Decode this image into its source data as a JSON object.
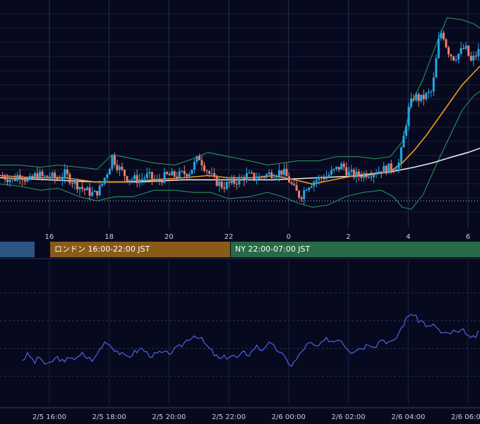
{
  "colors": {
    "background": "#070a1e",
    "grid": "#1a1f3a",
    "candle_up": "#22a6e8",
    "candle_down": "#e8806e",
    "bollinger": "#2e9b63",
    "ma_short": "#f39a1f",
    "ma_long": "#e8e8e8",
    "oscillator": "#4f62e6",
    "session_tokyo": "#2b5582",
    "session_london": "#8a5a18",
    "session_ny": "#276a45"
  },
  "sessions": [
    {
      "id": "tokyo",
      "label": ""
    },
    {
      "id": "london",
      "label": "ロンドン 16:00-22:00 JST"
    },
    {
      "id": "ny",
      "label": "NY 22:00-07:00 JST"
    }
  ],
  "chart_data": [
    {
      "type": "candlestick",
      "title": "",
      "xlabel": "",
      "ylabel": "",
      "x_tick_labels": [
        "16",
        "18",
        "20",
        "22",
        "0",
        "2",
        "4",
        "6"
      ],
      "x_tick_hours": [
        16,
        18,
        20,
        22,
        24,
        26,
        28,
        30
      ],
      "x_range_hours": [
        14.35,
        30.4
      ],
      "y_range": [
        0,
        100
      ],
      "grid": true,
      "price_path": [
        [
          14.35,
          24
        ],
        [
          14.8,
          22
        ],
        [
          15.0,
          25
        ],
        [
          15.3,
          21
        ],
        [
          15.6,
          25
        ],
        [
          15.8,
          23
        ],
        [
          16.0,
          24
        ],
        [
          16.3,
          22
        ],
        [
          16.5,
          25
        ],
        [
          16.8,
          21
        ],
        [
          17.2,
          17
        ],
        [
          17.5,
          15
        ],
        [
          17.7,
          18
        ],
        [
          18.0,
          28
        ],
        [
          18.1,
          33
        ],
        [
          18.3,
          28
        ],
        [
          18.6,
          23
        ],
        [
          19.0,
          22
        ],
        [
          19.3,
          24
        ],
        [
          19.6,
          21
        ],
        [
          19.9,
          24
        ],
        [
          20.3,
          24
        ],
        [
          20.7,
          26
        ],
        [
          21.0,
          33
        ],
        [
          21.2,
          28
        ],
        [
          21.5,
          22
        ],
        [
          21.8,
          19
        ],
        [
          22.2,
          21
        ],
        [
          22.6,
          24
        ],
        [
          23.0,
          23
        ],
        [
          23.4,
          25
        ],
        [
          23.8,
          26
        ],
        [
          24.0,
          22
        ],
        [
          24.2,
          17
        ],
        [
          24.4,
          14
        ],
        [
          24.6,
          19
        ],
        [
          24.9,
          22
        ],
        [
          25.3,
          24
        ],
        [
          25.6,
          27
        ],
        [
          25.8,
          29
        ],
        [
          26.0,
          25
        ],
        [
          26.3,
          24
        ],
        [
          26.6,
          25
        ],
        [
          26.9,
          26
        ],
        [
          27.2,
          27
        ],
        [
          27.5,
          28
        ],
        [
          27.7,
          30
        ],
        [
          27.8,
          38
        ],
        [
          28.0,
          55
        ],
        [
          28.2,
          62
        ],
        [
          28.4,
          60
        ],
        [
          28.6,
          62
        ],
        [
          28.8,
          64
        ],
        [
          28.9,
          75
        ],
        [
          29.0,
          87
        ],
        [
          29.1,
          92
        ],
        [
          29.2,
          90
        ],
        [
          29.3,
          84
        ],
        [
          29.5,
          80
        ],
        [
          29.7,
          82
        ],
        [
          29.9,
          85
        ],
        [
          30.1,
          78
        ],
        [
          30.2,
          80
        ],
        [
          30.4,
          84
        ]
      ],
      "bollinger_upper_path": [
        [
          14.35,
          29
        ],
        [
          15.0,
          29
        ],
        [
          15.7,
          28
        ],
        [
          16.3,
          29
        ],
        [
          17.0,
          28
        ],
        [
          17.6,
          27
        ],
        [
          18.1,
          34
        ],
        [
          18.8,
          32
        ],
        [
          19.5,
          30
        ],
        [
          20.2,
          29
        ],
        [
          20.8,
          32
        ],
        [
          21.3,
          35
        ],
        [
          22.0,
          33
        ],
        [
          22.7,
          31
        ],
        [
          23.3,
          29
        ],
        [
          23.8,
          30
        ],
        [
          24.3,
          31
        ],
        [
          25.0,
          31
        ],
        [
          25.6,
          33
        ],
        [
          26.3,
          33
        ],
        [
          26.9,
          32
        ],
        [
          27.4,
          33
        ],
        [
          27.8,
          40
        ],
        [
          28.1,
          58
        ],
        [
          28.5,
          70
        ],
        [
          28.9,
          85
        ],
        [
          29.3,
          99
        ],
        [
          29.8,
          98
        ],
        [
          30.2,
          96
        ],
        [
          30.4,
          94
        ]
      ],
      "bollinger_lower_path": [
        [
          14.35,
          20
        ],
        [
          15.0,
          19
        ],
        [
          15.7,
          17
        ],
        [
          16.3,
          18
        ],
        [
          17.0,
          14
        ],
        [
          17.6,
          12
        ],
        [
          18.2,
          14
        ],
        [
          18.8,
          14
        ],
        [
          19.5,
          17
        ],
        [
          20.2,
          17
        ],
        [
          20.8,
          16
        ],
        [
          21.4,
          16
        ],
        [
          22.0,
          13
        ],
        [
          22.7,
          14
        ],
        [
          23.3,
          16
        ],
        [
          23.8,
          14
        ],
        [
          24.3,
          11
        ],
        [
          24.8,
          9
        ],
        [
          25.3,
          10
        ],
        [
          25.9,
          14
        ],
        [
          26.5,
          16
        ],
        [
          27.1,
          17
        ],
        [
          27.5,
          14
        ],
        [
          27.8,
          9
        ],
        [
          28.1,
          8
        ],
        [
          28.5,
          15
        ],
        [
          28.9,
          28
        ],
        [
          29.3,
          40
        ],
        [
          29.8,
          55
        ],
        [
          30.2,
          62
        ],
        [
          30.4,
          64
        ]
      ],
      "ma_short_path": [
        [
          14.35,
          24
        ],
        [
          15.5,
          23
        ],
        [
          16.5,
          23
        ],
        [
          17.5,
          21
        ],
        [
          18.5,
          21
        ],
        [
          19.5,
          22
        ],
        [
          20.5,
          23
        ],
        [
          21.3,
          24
        ],
        [
          22.0,
          23
        ],
        [
          22.8,
          23
        ],
        [
          23.5,
          24
        ],
        [
          24.2,
          22
        ],
        [
          24.8,
          20
        ],
        [
          25.5,
          22
        ],
        [
          26.2,
          24
        ],
        [
          26.8,
          25
        ],
        [
          27.4,
          26
        ],
        [
          27.8,
          30
        ],
        [
          28.2,
          36
        ],
        [
          28.6,
          43
        ],
        [
          29.0,
          51
        ],
        [
          29.4,
          59
        ],
        [
          29.8,
          67
        ],
        [
          30.2,
          73
        ],
        [
          30.4,
          76
        ]
      ],
      "ma_long_path": [
        [
          14.35,
          23
        ],
        [
          16.0,
          22
        ],
        [
          17.5,
          21
        ],
        [
          19.0,
          21
        ],
        [
          20.5,
          22
        ],
        [
          22.0,
          22
        ],
        [
          23.5,
          22
        ],
        [
          25.0,
          23
        ],
        [
          26.5,
          24
        ],
        [
          27.5,
          26
        ],
        [
          28.2,
          28
        ],
        [
          28.8,
          30
        ],
        [
          29.5,
          33
        ],
        [
          30.0,
          35
        ],
        [
          30.4,
          37
        ]
      ],
      "dotted_level": 12
    },
    {
      "type": "line",
      "title": "",
      "xlabel": "",
      "ylabel": "",
      "series": [
        {
          "name": "",
          "points": [
            [
              15.1,
              32
            ],
            [
              15.3,
              36
            ],
            [
              15.5,
              30
            ],
            [
              15.7,
              34
            ],
            [
              15.9,
              27
            ],
            [
              16.1,
              31
            ],
            [
              16.3,
              34
            ],
            [
              16.5,
              29
            ],
            [
              16.7,
              35
            ],
            [
              16.9,
              32
            ],
            [
              17.1,
              36
            ],
            [
              17.3,
              33
            ],
            [
              17.5,
              32
            ],
            [
              17.7,
              40
            ],
            [
              17.9,
              46
            ],
            [
              18.1,
              41
            ],
            [
              18.3,
              38
            ],
            [
              18.5,
              34
            ],
            [
              18.7,
              35
            ],
            [
              18.9,
              38
            ],
            [
              19.1,
              40
            ],
            [
              19.3,
              36
            ],
            [
              19.5,
              35
            ],
            [
              19.7,
              37
            ],
            [
              19.9,
              36
            ],
            [
              20.1,
              38
            ],
            [
              20.3,
              40
            ],
            [
              20.5,
              44
            ],
            [
              20.7,
              48
            ],
            [
              20.9,
              50
            ],
            [
              21.1,
              46
            ],
            [
              21.3,
              41
            ],
            [
              21.5,
              36
            ],
            [
              21.7,
              32
            ],
            [
              21.9,
              34
            ],
            [
              22.1,
              35
            ],
            [
              22.3,
              33
            ],
            [
              22.5,
              37
            ],
            [
              22.7,
              36
            ],
            [
              22.9,
              42
            ],
            [
              23.1,
              39
            ],
            [
              23.3,
              44
            ],
            [
              23.5,
              41
            ],
            [
              23.7,
              38
            ],
            [
              23.9,
              32
            ],
            [
              24.1,
              28
            ],
            [
              24.3,
              33
            ],
            [
              24.5,
              40
            ],
            [
              24.7,
              44
            ],
            [
              24.9,
              41
            ],
            [
              25.1,
              43
            ],
            [
              25.3,
              47
            ],
            [
              25.5,
              45
            ],
            [
              25.7,
              48
            ],
            [
              25.9,
              42
            ],
            [
              26.1,
              38
            ],
            [
              26.3,
              40
            ],
            [
              26.5,
              41
            ],
            [
              26.7,
              44
            ],
            [
              26.9,
              42
            ],
            [
              27.1,
              47
            ],
            [
              27.3,
              45
            ],
            [
              27.5,
              44
            ],
            [
              27.7,
              52
            ],
            [
              27.9,
              60
            ],
            [
              28.1,
              66
            ],
            [
              28.3,
              61
            ],
            [
              28.5,
              59
            ],
            [
              28.7,
              55
            ],
            [
              28.9,
              57
            ],
            [
              29.1,
              51
            ],
            [
              29.3,
              50
            ],
            [
              29.5,
              52
            ],
            [
              29.7,
              51
            ],
            [
              29.9,
              53
            ],
            [
              30.1,
              46
            ],
            [
              30.3,
              50
            ],
            [
              30.4,
              52
            ]
          ]
        }
      ],
      "x_tick_labels": [
        "2/5 16:00",
        "2/5 18:00",
        "2/5 20:00",
        "2/5 22:00",
        "2/6 00:00",
        "2/6 02:00",
        "2/6 04:00",
        "2/6 06:00"
      ],
      "x_tick_hours": [
        16,
        18,
        20,
        22,
        24,
        26,
        28,
        30
      ],
      "x_range_hours": [
        14.35,
        30.4
      ],
      "y_range": [
        0,
        100
      ],
      "grid": true
    }
  ]
}
